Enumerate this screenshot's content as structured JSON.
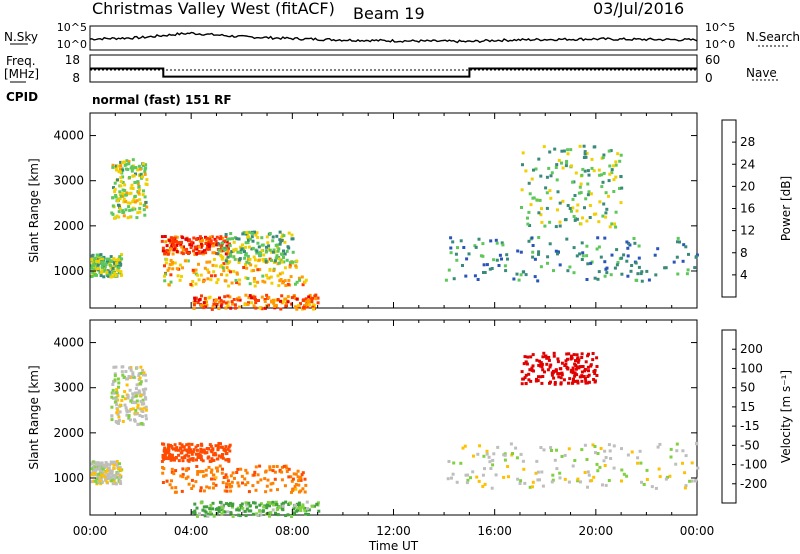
{
  "header": {
    "station": "Christmas Valley West (fitACF)",
    "beam": "Beam 19",
    "date": "03/Jul/2016"
  },
  "panel_labels": {
    "nsky": "N.Sky",
    "nsearch": "N.Search",
    "freq_line1": "Freq.",
    "freq_line2": "[MHz]",
    "nave": "Nave",
    "cpid": "CPID",
    "cpid_value": "normal (fast) 151 RF"
  },
  "noise_ticks": [
    "10^5",
    "10^0"
  ],
  "freq_ticks": [
    "18",
    "8"
  ],
  "nave_ticks": [
    "60",
    "0"
  ],
  "range_ticks": [
    "4000",
    "3000",
    "2000",
    "1000"
  ],
  "time_ticks": [
    "00:00",
    "04:00",
    "08:00",
    "12:00",
    "16:00",
    "20:00",
    "00:00"
  ],
  "xlabel": "Time UT",
  "ylabel_range": "Slant Range [km]",
  "power_scale": {
    "label": "Power [dB]",
    "ticks": [
      "28",
      "24",
      "20",
      "16",
      "12",
      "8",
      "4"
    ],
    "colors": [
      "#0018ff",
      "#2a55b8",
      "#3a8a7a",
      "#5cc85a",
      "#f0d000",
      "#ff9a00",
      "#ff3a00",
      "#e80000"
    ]
  },
  "velocity_scale": {
    "label": "Velocity [m s⁻¹]",
    "ticks": [
      "200",
      "100",
      "50",
      "15",
      "-15",
      "-50",
      "-100",
      "-200"
    ],
    "colors": [
      "#2030c0",
      "#3a7a8a",
      "#40a040",
      "#80d040",
      "#bebebe",
      "#ffc000",
      "#ff8000",
      "#ff4a00",
      "#e00000"
    ]
  },
  "chart_data": [
    {
      "type": "line",
      "title": "Christmas Valley West (fitACF) Beam 19 03/Jul/2016",
      "xlabel": "Time UT",
      "series": [
        {
          "name": "N.Sky",
          "x": [
            0,
            2,
            3.5,
            4,
            5,
            6,
            8,
            10,
            12,
            14,
            15,
            16,
            18,
            20,
            22,
            24
          ],
          "values": [
            1.5,
            1.8,
            2.6,
            2.8,
            2.4,
            2.0,
            1.6,
            1.3,
            1.1,
            1.0,
            0.9,
            1.2,
            1.4,
            1.5,
            1.4,
            1.3
          ]
        },
        {
          "name": "Freq.",
          "x": [
            0,
            2.9,
            2.9,
            15,
            15,
            24
          ],
          "values": [
            13,
            13,
            10,
            10,
            13,
            13
          ]
        }
      ]
    },
    {
      "type": "heatmap",
      "title": "Power [dB]",
      "xlabel": "Time UT",
      "ylabel": "Slant Range [km]",
      "xlim": [
        0,
        24
      ],
      "ylim": [
        180,
        4500
      ],
      "zlim": [
        0,
        30
      ],
      "regions": [
        {
          "x": [
            0,
            1.2
          ],
          "y": [
            900,
            1400
          ],
          "z": 14
        },
        {
          "x": [
            0.8,
            2.2
          ],
          "y": [
            2200,
            3500
          ],
          "z": 16
        },
        {
          "x": [
            2.8,
            5.5
          ],
          "y": [
            1400,
            1800
          ],
          "z": 26
        },
        {
          "x": [
            2.8,
            8.5
          ],
          "y": [
            700,
            1300
          ],
          "z": 20
        },
        {
          "x": [
            4,
            9
          ],
          "y": [
            180,
            500
          ],
          "z": 24
        },
        {
          "x": [
            5,
            8
          ],
          "y": [
            1200,
            1900
          ],
          "z": 14
        },
        {
          "x": [
            14,
            24
          ],
          "y": [
            800,
            1800
          ],
          "z": 10
        },
        {
          "x": [
            17,
            21
          ],
          "y": [
            2000,
            3800
          ],
          "z": 14
        }
      ]
    },
    {
      "type": "heatmap",
      "title": "Velocity [m s⁻¹]",
      "xlabel": "Time UT",
      "ylabel": "Slant Range [km]",
      "xlim": [
        0,
        24
      ],
      "ylim": [
        180,
        4500
      ],
      "zlim": [
        -200,
        200
      ],
      "regions": [
        {
          "x": [
            0,
            1.2
          ],
          "y": [
            900,
            1400
          ],
          "z": 0
        },
        {
          "x": [
            0.8,
            2.2
          ],
          "y": [
            2200,
            3500
          ],
          "z": 0
        },
        {
          "x": [
            2.8,
            5.5
          ],
          "y": [
            1400,
            1800
          ],
          "z": -120
        },
        {
          "x": [
            2.8,
            8.5
          ],
          "y": [
            700,
            1300
          ],
          "z": -60
        },
        {
          "x": [
            4,
            9
          ],
          "y": [
            180,
            500
          ],
          "z": 40
        },
        {
          "x": [
            17,
            20
          ],
          "y": [
            3100,
            3800
          ],
          "z": -200
        },
        {
          "x": [
            14,
            24
          ],
          "y": [
            800,
            1800
          ],
          "z": 0
        }
      ]
    }
  ]
}
